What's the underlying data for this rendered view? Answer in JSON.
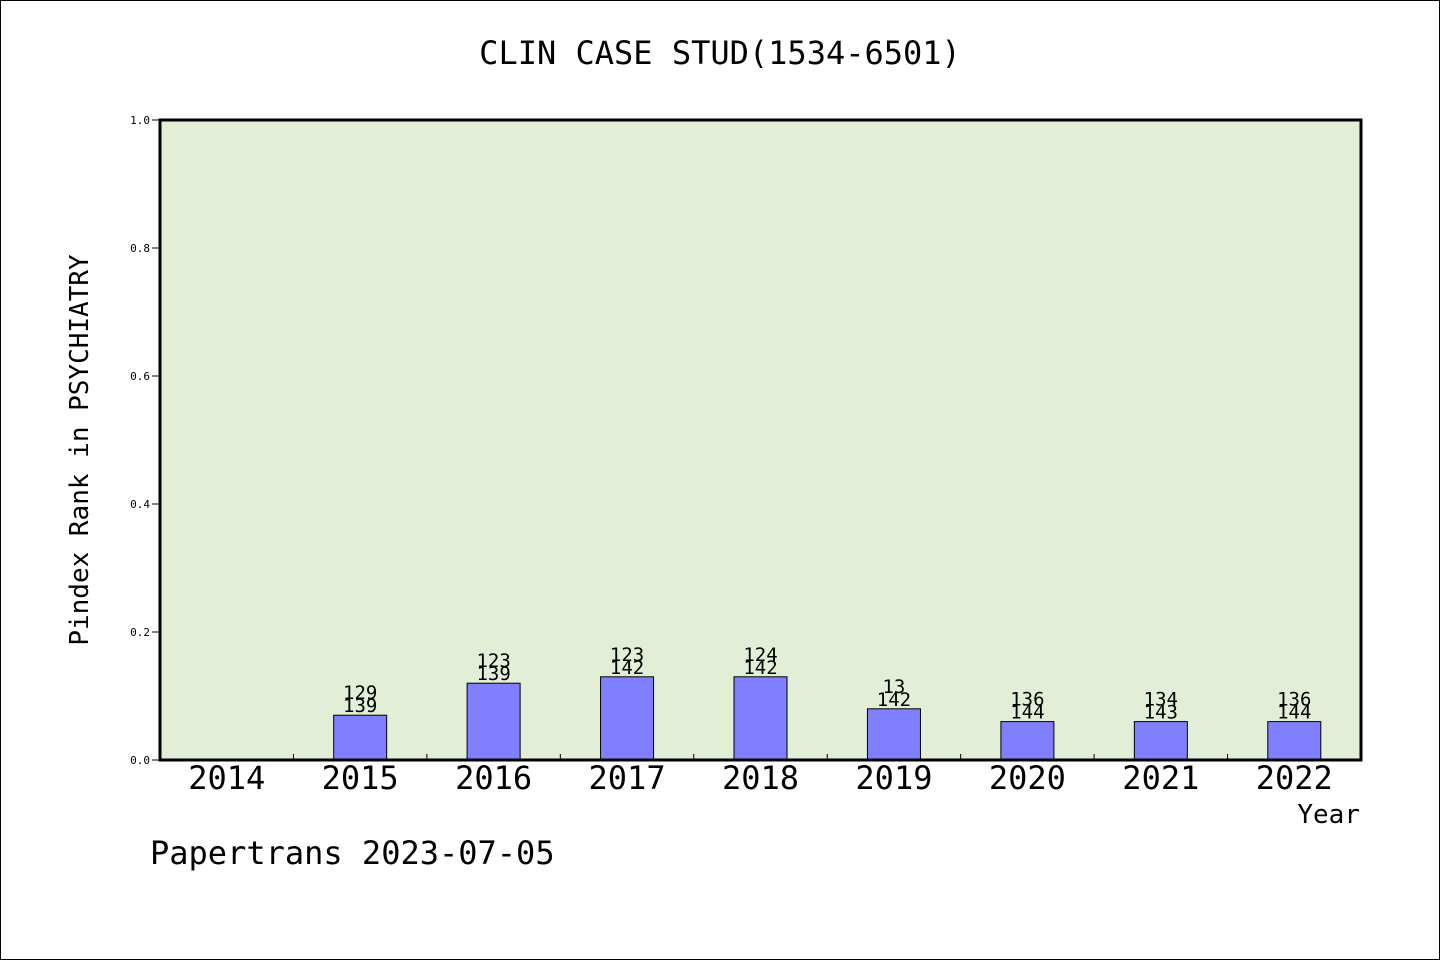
{
  "chart_data": {
    "type": "bar",
    "title": "CLIN CASE STUD(1534-6501)",
    "xlabel": "Year",
    "ylabel": "Pindex Rank in PSYCHIATRY",
    "ylim": [
      0,
      1.0
    ],
    "yticks": [
      "0.0",
      "0.2",
      "0.4",
      "0.6",
      "0.8",
      "1.0"
    ],
    "categories": [
      "2014",
      "2015",
      "2016",
      "2017",
      "2018",
      "2019",
      "2020",
      "2021",
      "2022"
    ],
    "values": [
      0,
      0.07,
      0.12,
      0.13,
      0.13,
      0.08,
      0.06,
      0.06,
      0.06
    ],
    "labels_top": [
      "",
      "129",
      "123",
      "123",
      "124",
      "13",
      "136",
      "134",
      "136"
    ],
    "labels_bottom": [
      "",
      "139",
      "139",
      "142",
      "142",
      "142",
      "144",
      "143",
      "144"
    ],
    "grid": false,
    "colors": {
      "plot_bg": "#e2efd6",
      "bar": "#8080ff",
      "axis": "#000000"
    }
  },
  "footer": "Papertrans 2023-07-05"
}
